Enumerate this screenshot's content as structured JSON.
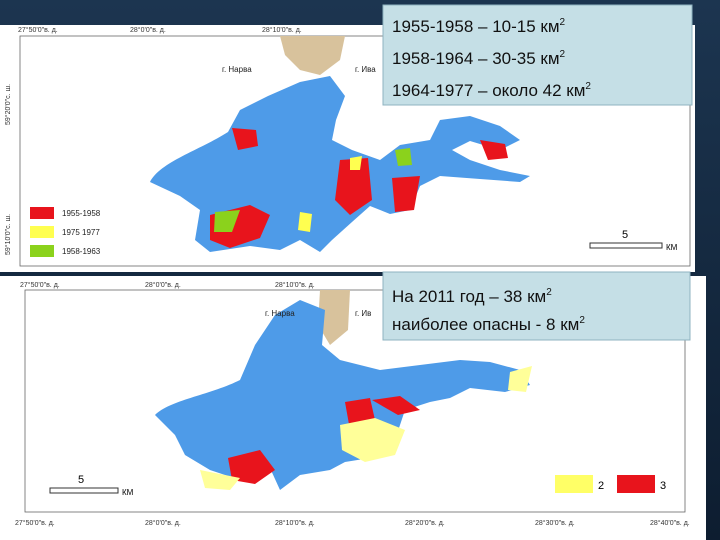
{
  "top_map": {
    "coords_top": [
      "27°50'0\"в. д.",
      "28°0'0\"в. д.",
      "28°10'0\"в. д."
    ],
    "coords_left": [
      "59°20'0\"с. ш.",
      "59°10'0\"с. ш."
    ],
    "places": [
      "г. Нарва",
      "г. Ива"
    ],
    "legend": [
      "1955-1958",
      "1975 1977",
      "1958-1963"
    ],
    "scale": {
      "value": "5",
      "unit": "КМ"
    },
    "info_box": [
      {
        "text": "1955-1958 – 10-15 км",
        "sup": "2"
      },
      {
        "text": "1958-1964 – 30-35 км",
        "sup": "2"
      },
      {
        "text": "1964-1977 – около 42 км",
        "sup": "2"
      }
    ]
  },
  "bottom_map": {
    "coords_top": [
      "27°50'0\"в. д.",
      "28°0'0\"в. д.",
      "28°10'0\"в. д."
    ],
    "coords_bottom": [
      "27°50'0\"в. д.",
      "28°0'0\"в. д.",
      "28°10'0\"в. д.",
      "28°20'0\"в. д.",
      "28°30'0\"в. д.",
      "28°40'0\"в. д."
    ],
    "places": [
      "г. Нарва",
      "г. Ив"
    ],
    "legend": [
      "2",
      "3"
    ],
    "scale": {
      "value": "5",
      "unit": "КМ"
    },
    "info_box": [
      {
        "text": "На 2011 год – 38 км",
        "sup": "2"
      },
      {
        "text": "наиболее опасны - 8 км",
        "sup": "2"
      }
    ]
  }
}
